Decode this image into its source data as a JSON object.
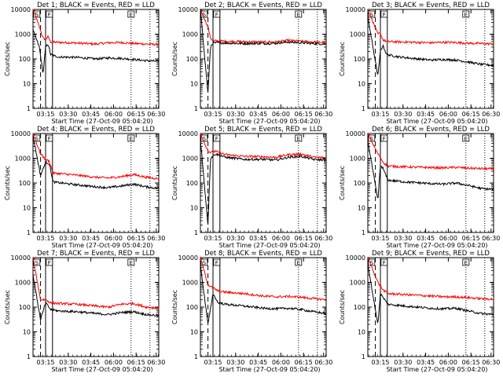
{
  "chart_data": {
    "type": "line",
    "layout": "3x3 grid",
    "common": {
      "ylabel": "Counts/sec",
      "xlabel": "Start Time (27-Oct-09 05:04:20)",
      "xticks": [
        "03:15",
        "03:30",
        "03:45",
        "06:00",
        "06:15",
        "06:30"
      ],
      "yticks": [
        "1",
        "10",
        "100",
        "1000",
        "10000"
      ],
      "yscale": "log",
      "ylim": [
        1,
        10000
      ],
      "series_colors": {
        "events": "#000000",
        "lld": "#ff0000"
      },
      "markers": [
        "S",
        "F",
        "E"
      ]
    },
    "panels": [
      {
        "title": "Det 1; BLACK = Events, RED = LLD",
        "events": [
          [
            0,
            1500
          ],
          [
            0.05,
            300
          ],
          [
            0.08,
            25
          ],
          [
            0.1,
            300
          ],
          [
            0.12,
            400
          ],
          [
            0.14,
            150
          ],
          [
            0.2,
            120
          ],
          [
            0.35,
            115
          ],
          [
            0.5,
            100
          ],
          [
            0.6,
            110
          ],
          [
            0.7,
            105
          ],
          [
            0.8,
            95
          ],
          [
            0.9,
            85
          ],
          [
            1.0,
            80
          ]
        ],
        "lld": [
          [
            0,
            10000
          ],
          [
            0.05,
            2000
          ],
          [
            0.08,
            700
          ],
          [
            0.1,
            600
          ],
          [
            0.12,
            800
          ],
          [
            0.14,
            480
          ],
          [
            0.3,
            450
          ],
          [
            0.5,
            400
          ],
          [
            0.6,
            450
          ],
          [
            0.7,
            460
          ],
          [
            0.8,
            420
          ],
          [
            0.9,
            400
          ],
          [
            1.0,
            380
          ]
        ]
      },
      {
        "title": "Det 2; BLACK = Events, RED = LLD",
        "events": [
          [
            0,
            10000
          ],
          [
            0.06,
            4
          ],
          [
            0.08,
            300
          ],
          [
            0.1,
            450
          ],
          [
            0.15,
            450
          ],
          [
            0.3,
            420
          ],
          [
            0.5,
            420
          ],
          [
            0.6,
            430
          ],
          [
            0.7,
            480
          ],
          [
            0.8,
            450
          ],
          [
            0.9,
            420
          ],
          [
            1.0,
            400
          ]
        ],
        "lld": [
          [
            0,
            10000
          ],
          [
            0.06,
            2000
          ],
          [
            0.08,
            700
          ],
          [
            0.1,
            550
          ],
          [
            0.15,
            520
          ],
          [
            0.3,
            500
          ],
          [
            0.5,
            480
          ],
          [
            0.6,
            490
          ],
          [
            0.7,
            560
          ],
          [
            0.8,
            520
          ],
          [
            0.9,
            480
          ],
          [
            1.0,
            460
          ]
        ]
      },
      {
        "title": "Det 3; BLACK = Events, RED = LLD",
        "events": [
          [
            0,
            5000
          ],
          [
            0.08,
            20
          ],
          [
            0.1,
            200
          ],
          [
            0.12,
            350
          ],
          [
            0.15,
            150
          ],
          [
            0.25,
            120
          ],
          [
            0.4,
            100
          ],
          [
            0.5,
            90
          ],
          [
            0.6,
            95
          ],
          [
            0.7,
            90
          ],
          [
            0.8,
            75
          ],
          [
            0.9,
            60
          ],
          [
            1.0,
            55
          ]
        ],
        "lld": [
          [
            0,
            10000
          ],
          [
            0.08,
            1000
          ],
          [
            0.1,
            1100
          ],
          [
            0.12,
            600
          ],
          [
            0.15,
            500
          ],
          [
            0.3,
            480
          ],
          [
            0.5,
            450
          ],
          [
            0.6,
            470
          ],
          [
            0.7,
            460
          ],
          [
            0.8,
            430
          ],
          [
            0.9,
            420
          ],
          [
            1.0,
            400
          ]
        ]
      },
      {
        "title": "Det 4; BLACK = Events, RED = LLD",
        "events": [
          [
            0,
            8000
          ],
          [
            0.06,
            200
          ],
          [
            0.1,
            700
          ],
          [
            0.13,
            600
          ],
          [
            0.16,
            110
          ],
          [
            0.3,
            90
          ],
          [
            0.5,
            70
          ],
          [
            0.6,
            65
          ],
          [
            0.7,
            75
          ],
          [
            0.8,
            90
          ],
          [
            0.9,
            70
          ],
          [
            1.0,
            60
          ]
        ],
        "lld": [
          [
            0,
            10000
          ],
          [
            0.06,
            1500
          ],
          [
            0.1,
            900
          ],
          [
            0.13,
            750
          ],
          [
            0.16,
            250
          ],
          [
            0.3,
            220
          ],
          [
            0.5,
            170
          ],
          [
            0.6,
            160
          ],
          [
            0.7,
            180
          ],
          [
            0.8,
            220
          ],
          [
            0.9,
            170
          ],
          [
            1.0,
            150
          ]
        ]
      },
      {
        "title": "Det 5; BLACK = Events, RED = LLD",
        "events": [
          [
            0,
            6000
          ],
          [
            0.06,
            2
          ],
          [
            0.08,
            1000
          ],
          [
            0.12,
            1500
          ],
          [
            0.2,
            1100
          ],
          [
            0.35,
            900
          ],
          [
            0.5,
            900
          ],
          [
            0.6,
            850
          ],
          [
            0.7,
            1100
          ],
          [
            0.8,
            1200
          ],
          [
            0.9,
            900
          ],
          [
            1.0,
            850
          ]
        ],
        "lld": [
          [
            0,
            10000
          ],
          [
            0.06,
            2000
          ],
          [
            0.08,
            1700
          ],
          [
            0.12,
            1900
          ],
          [
            0.2,
            1400
          ],
          [
            0.35,
            1200
          ],
          [
            0.5,
            1150
          ],
          [
            0.6,
            1100
          ],
          [
            0.7,
            1400
          ],
          [
            0.8,
            1500
          ],
          [
            0.9,
            1100
          ],
          [
            1.0,
            1050
          ]
        ]
      },
      {
        "title": "Det 6; BLACK = Events, RED = LLD",
        "events": [
          [
            0,
            5000
          ],
          [
            0.08,
            20
          ],
          [
            0.1,
            500
          ],
          [
            0.12,
            400
          ],
          [
            0.16,
            130
          ],
          [
            0.3,
            110
          ],
          [
            0.5,
            95
          ],
          [
            0.6,
            90
          ],
          [
            0.7,
            100
          ],
          [
            0.8,
            80
          ],
          [
            0.9,
            60
          ],
          [
            1.0,
            55
          ]
        ],
        "lld": [
          [
            0,
            10000
          ],
          [
            0.08,
            1500
          ],
          [
            0.1,
            1100
          ],
          [
            0.12,
            700
          ],
          [
            0.16,
            480
          ],
          [
            0.3,
            450
          ],
          [
            0.5,
            420
          ],
          [
            0.6,
            410
          ],
          [
            0.7,
            430
          ],
          [
            0.8,
            400
          ],
          [
            0.9,
            380
          ],
          [
            1.0,
            370
          ]
        ]
      },
      {
        "title": "Det 7; BLACK = Events, RED = LLD",
        "events": [
          [
            0,
            2000
          ],
          [
            0.06,
            30
          ],
          [
            0.1,
            150
          ],
          [
            0.14,
            80
          ],
          [
            0.2,
            70
          ],
          [
            0.35,
            65
          ],
          [
            0.5,
            55
          ],
          [
            0.6,
            50
          ],
          [
            0.7,
            60
          ],
          [
            0.8,
            65
          ],
          [
            0.9,
            50
          ],
          [
            1.0,
            45
          ]
        ],
        "lld": [
          [
            0,
            10000
          ],
          [
            0.06,
            200
          ],
          [
            0.1,
            200
          ],
          [
            0.14,
            150
          ],
          [
            0.2,
            140
          ],
          [
            0.35,
            130
          ],
          [
            0.5,
            110
          ],
          [
            0.6,
            100
          ],
          [
            0.7,
            130
          ],
          [
            0.8,
            140
          ],
          [
            0.9,
            100
          ],
          [
            1.0,
            90
          ]
        ]
      },
      {
        "title": "Det 8; BLACK = Events, RED = LLD",
        "events": [
          [
            0,
            5000
          ],
          [
            0.06,
            20
          ],
          [
            0.1,
            350
          ],
          [
            0.14,
            150
          ],
          [
            0.2,
            130
          ],
          [
            0.35,
            110
          ],
          [
            0.5,
            90
          ],
          [
            0.6,
            85
          ],
          [
            0.7,
            90
          ],
          [
            0.8,
            80
          ],
          [
            0.9,
            65
          ],
          [
            1.0,
            55
          ]
        ],
        "lld": [
          [
            0,
            10000
          ],
          [
            0.06,
            800
          ],
          [
            0.1,
            600
          ],
          [
            0.14,
            450
          ],
          [
            0.2,
            400
          ],
          [
            0.35,
            350
          ],
          [
            0.5,
            280
          ],
          [
            0.6,
            260
          ],
          [
            0.7,
            270
          ],
          [
            0.8,
            250
          ],
          [
            0.9,
            220
          ],
          [
            1.0,
            200
          ]
        ]
      },
      {
        "title": "Det 9; BLACK = Events, RED = LLD",
        "events": [
          [
            0,
            5000
          ],
          [
            0.08,
            20
          ],
          [
            0.1,
            350
          ],
          [
            0.12,
            250
          ],
          [
            0.16,
            130
          ],
          [
            0.3,
            110
          ],
          [
            0.5,
            90
          ],
          [
            0.6,
            85
          ],
          [
            0.7,
            90
          ],
          [
            0.8,
            70
          ],
          [
            0.9,
            55
          ],
          [
            1.0,
            50
          ]
        ],
        "lld": [
          [
            0,
            10000
          ],
          [
            0.08,
            1000
          ],
          [
            0.1,
            700
          ],
          [
            0.12,
            500
          ],
          [
            0.16,
            350
          ],
          [
            0.3,
            320
          ],
          [
            0.5,
            280
          ],
          [
            0.6,
            260
          ],
          [
            0.7,
            260
          ],
          [
            0.8,
            240
          ],
          [
            0.9,
            220
          ],
          [
            1.0,
            210
          ]
        ]
      }
    ]
  }
}
